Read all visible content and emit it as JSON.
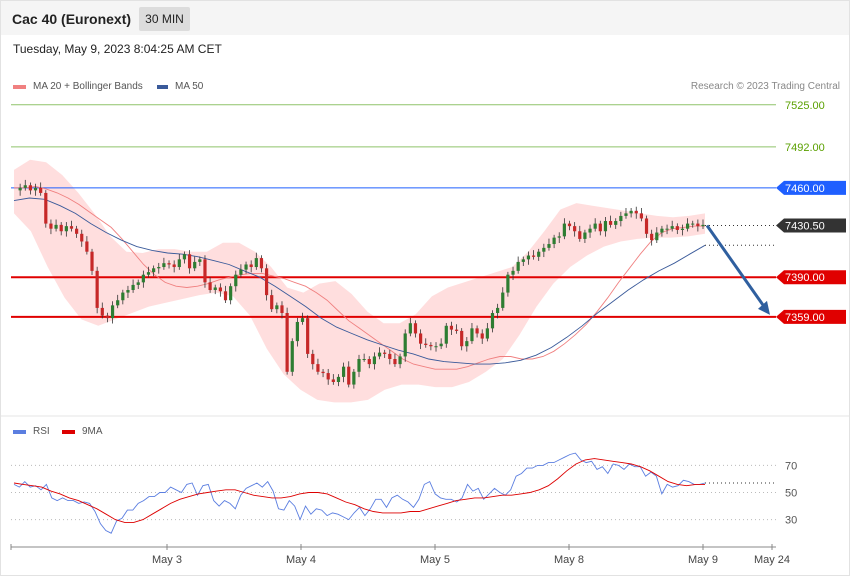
{
  "header": {
    "title": "Cac 40 (Euronext)",
    "timeframe": "30 MIN"
  },
  "timestamp": "Tuesday, May 9, 2023 8:04:25 AM CET",
  "legend": {
    "ma20": "MA 20 + Bollinger Bands",
    "ma50": "MA 50",
    "rsi": "RSI",
    "rsi_ma": "9MA"
  },
  "credit": "Research © 2023 Trading Central",
  "colors": {
    "bullish": "#2e7d32",
    "bearish": "#c62828",
    "bollinger_fill": "#ffd8d8",
    "ma20": "#f08080",
    "ma50": "#3a5a9a",
    "rsi": "#5b7ee0",
    "rsi_ma": "#dd0000",
    "resistance": "#8fc36a",
    "pivot": "#1f5fff",
    "support": "#e00000",
    "arrow": "#2f5f9f"
  },
  "chart_data": [
    {
      "type": "candlestick",
      "title": "Cac 40 (Euronext)",
      "timeframe": "30 MIN",
      "ylim": [
        7290,
        7535
      ],
      "x_ticks": [
        "May 3",
        "May 4",
        "May 5",
        "May 8",
        "May 9",
        "May 24"
      ],
      "last_price": 7430.5,
      "levels": [
        {
          "value": 7525.0,
          "label": "7525.00",
          "kind": "resistance"
        },
        {
          "value": 7492.0,
          "label": "7492.00",
          "kind": "resistance"
        },
        {
          "value": 7460.0,
          "label": "7460.00",
          "kind": "pivot"
        },
        {
          "value": 7390.0,
          "label": "7390.00",
          "kind": "support"
        },
        {
          "value": 7359.0,
          "label": "7359.00",
          "kind": "support"
        }
      ],
      "close_series": [
        7458,
        7460,
        7462,
        7458,
        7460,
        7456,
        7432,
        7428,
        7431,
        7426,
        7430,
        7428,
        7424,
        7418,
        7410,
        7395,
        7366,
        7360,
        7358,
        7368,
        7372,
        7378,
        7380,
        7384,
        7386,
        7392,
        7394,
        7397,
        7398,
        7401,
        7400,
        7398,
        7404,
        7408,
        7397,
        7402,
        7404,
        7386,
        7380,
        7382,
        7379,
        7372,
        7383,
        7392,
        7396,
        7400,
        7398,
        7405,
        7397,
        7376,
        7365,
        7368,
        7362,
        7316,
        7340,
        7355,
        7358,
        7330,
        7322,
        7316,
        7315,
        7310,
        7308,
        7312,
        7320,
        7306,
        7316,
        7326,
        7326,
        7322,
        7328,
        7331,
        7330,
        7326,
        7322,
        7328,
        7346,
        7354,
        7346,
        7338,
        7337,
        7336,
        7336,
        7338,
        7352,
        7349,
        7348,
        7336,
        7340,
        7350,
        7346,
        7342,
        7350,
        7362,
        7366,
        7378,
        7392,
        7395,
        7402,
        7404,
        7407,
        7406,
        7410,
        7413,
        7416,
        7421,
        7422,
        7432,
        7430,
        7426,
        7420,
        7425,
        7428,
        7432,
        7426,
        7434,
        7431,
        7434,
        7438,
        7440,
        7442,
        7440,
        7436,
        7424,
        7419,
        7425,
        7428,
        7428,
        7430,
        7427,
        7428,
        7432,
        7432,
        7430,
        7431
      ],
      "ma20": [
        7460,
        7460,
        7461,
        7459,
        7456,
        7452,
        7447,
        7441,
        7435,
        7429,
        7420,
        7410,
        7400,
        7392,
        7386,
        7383,
        7382,
        7383,
        7385,
        7388,
        7390,
        7392,
        7393,
        7393,
        7391,
        7389,
        7386,
        7383,
        7378,
        7372,
        7364,
        7356,
        7350,
        7344,
        7338,
        7332,
        7326,
        7322,
        7320,
        7318,
        7318,
        7318,
        7320,
        7323,
        7326,
        7328,
        7328,
        7326,
        7326,
        7328,
        7332,
        7338,
        7345,
        7353,
        7363,
        7374,
        7386,
        7397,
        7408,
        7418,
        7425,
        7428,
        7429,
        7430,
        7430
      ],
      "ma50": [
        7450,
        7452,
        7451,
        7446,
        7440,
        7432,
        7425,
        7419,
        7414,
        7411,
        7409,
        7408,
        7406,
        7403,
        7400,
        7395,
        7390,
        7383,
        7375,
        7367,
        7358,
        7351,
        7346,
        7341,
        7337,
        7333,
        7330,
        7326,
        7324,
        7323,
        7322,
        7322,
        7323,
        7325,
        7329,
        7335,
        7343,
        7352,
        7362,
        7371,
        7380,
        7388,
        7395,
        7401,
        7408,
        7415
      ],
      "bollinger_upper": [
        7474,
        7482,
        7480,
        7470,
        7456,
        7440,
        7422,
        7410,
        7409,
        7412,
        7412,
        7410,
        7410,
        7417,
        7417,
        7410,
        7398,
        7382,
        7378,
        7385,
        7387,
        7377,
        7363,
        7354,
        7354,
        7361,
        7375,
        7382,
        7386,
        7390,
        7394,
        7398,
        7410,
        7426,
        7443,
        7448,
        7446,
        7444,
        7442,
        7440,
        7438,
        7437,
        7438,
        7440
      ],
      "bollinger_lower": [
        7440,
        7426,
        7398,
        7374,
        7357,
        7352,
        7357,
        7362,
        7367,
        7370,
        7373,
        7376,
        7378,
        7375,
        7360,
        7334,
        7314,
        7302,
        7294,
        7292,
        7292,
        7294,
        7302,
        7306,
        7306,
        7304,
        7304,
        7308,
        7316,
        7326,
        7345,
        7367,
        7385,
        7398,
        7407,
        7414,
        7418,
        7420,
        7421,
        7421,
        7422,
        7424
      ],
      "forecast": {
        "from": 7430.5,
        "to": 7359.0
      }
    },
    {
      "type": "line",
      "series_names": [
        "RSI",
        "9MA"
      ],
      "ylim": [
        15,
        85
      ],
      "y_ticks": [
        30,
        50,
        70
      ],
      "rsi": [
        56,
        54,
        58,
        54,
        55,
        52,
        56,
        46,
        44,
        46,
        44,
        44,
        42,
        43,
        42,
        36,
        27,
        22,
        20,
        29,
        31,
        37,
        37,
        42,
        44,
        47,
        47,
        50,
        50,
        54,
        52,
        50,
        56,
        57,
        48,
        55,
        56,
        44,
        40,
        44,
        42,
        38,
        48,
        53,
        55,
        57,
        54,
        58,
        51,
        38,
        37,
        44,
        40,
        30,
        40,
        34,
        38,
        37,
        33,
        35,
        34,
        32,
        30,
        35,
        39,
        33,
        38,
        45,
        45,
        39,
        46,
        48,
        45,
        43,
        39,
        45,
        56,
        58,
        49,
        46,
        45,
        45,
        43,
        46,
        56,
        51,
        53,
        45,
        49,
        53,
        50,
        48,
        52,
        62,
        64,
        68,
        68,
        70,
        70,
        72,
        72,
        74,
        76,
        78,
        79,
        74,
        72,
        73,
        67,
        69,
        64,
        71,
        70,
        67,
        71,
        69,
        69,
        62,
        65,
        62,
        49,
        56,
        54,
        55,
        59,
        58,
        56,
        56,
        57
      ],
      "rsi_ma": [
        57,
        56,
        55,
        54,
        51,
        49,
        46,
        44,
        41,
        38,
        34,
        30,
        28,
        28,
        30,
        34,
        38,
        42,
        45,
        47,
        49,
        50,
        51,
        52,
        52,
        50,
        48,
        47,
        46,
        46,
        47,
        49,
        50,
        50,
        49,
        46,
        43,
        41,
        38,
        36,
        35,
        35,
        35,
        36,
        36,
        38,
        40,
        42,
        44,
        45,
        46,
        46,
        47,
        48,
        48,
        49,
        50,
        52,
        55,
        60,
        66,
        71,
        74,
        75,
        74,
        73,
        72,
        71,
        69,
        66,
        62,
        58,
        56,
        55,
        56,
        56
      ]
    }
  ]
}
